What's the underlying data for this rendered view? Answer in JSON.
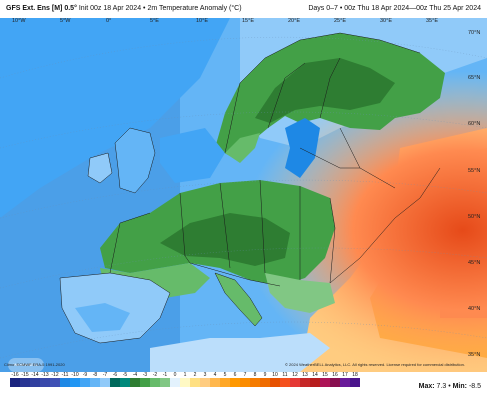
{
  "header": {
    "model": "GFS Ext. Ens [M] 0.5°",
    "init": "Init 00z 18 Apr 2024",
    "variable": "2m Temperature Anomaly (°C)",
    "period": "Days 0–7 • 00z Thu 18 Apr 2024—00z Thu 25 Apr 2024"
  },
  "lon_labels": [
    "10°W",
    "5°W",
    "0°",
    "5°E",
    "10°E",
    "15°E",
    "20°E",
    "25°E",
    "30°E",
    "35°E"
  ],
  "lat_labels": [
    "70°N",
    "65°N",
    "60°N",
    "55°N",
    "50°N",
    "45°N",
    "40°N",
    "35°N"
  ],
  "footer": {
    "climo": "Climo: ECMWF ERA-5 1991-2020",
    "copyright": "© 2024 WeatherBELL Analytics, LLC. All rights reserved. License required for commercial distribution.",
    "logo": "WeatherBELL",
    "max_label": "Max:",
    "max_value": "7.3",
    "min_label": "Min:",
    "min_value": "-8.5"
  },
  "colorbar": {
    "ticks": [
      "-16",
      "-15",
      "-14",
      "-13",
      "-12",
      "-11",
      "-10",
      "-9",
      "-8",
      "-7",
      "-6",
      "-5",
      "-4",
      "-3",
      "-2",
      "-1",
      "0",
      "1",
      "2",
      "3",
      "4",
      "5",
      "6",
      "7",
      "8",
      "9",
      "10",
      "11",
      "12",
      "13",
      "14",
      "15",
      "16",
      "17",
      "18"
    ],
    "colors": [
      "#1a237e",
      "#283593",
      "#303f9f",
      "#3949ab",
      "#3f51b5",
      "#1e88e5",
      "#2196f3",
      "#42a5f5",
      "#64b5f6",
      "#90caf9",
      "#00695c",
      "#00897b",
      "#2e7d32",
      "#43a047",
      "#66bb6a",
      "#81c784",
      "#e3f2fd",
      "#fff9c4",
      "#ffe082",
      "#ffcc80",
      "#ffb74d",
      "#ffa726",
      "#ff9800",
      "#fb8c00",
      "#f57c00",
      "#ef6c00",
      "#e65100",
      "#f4511e",
      "#e53935",
      "#c62828",
      "#b71c1c",
      "#ad1457",
      "#880e4f",
      "#6a1b9a",
      "#4a148c"
    ]
  }
}
